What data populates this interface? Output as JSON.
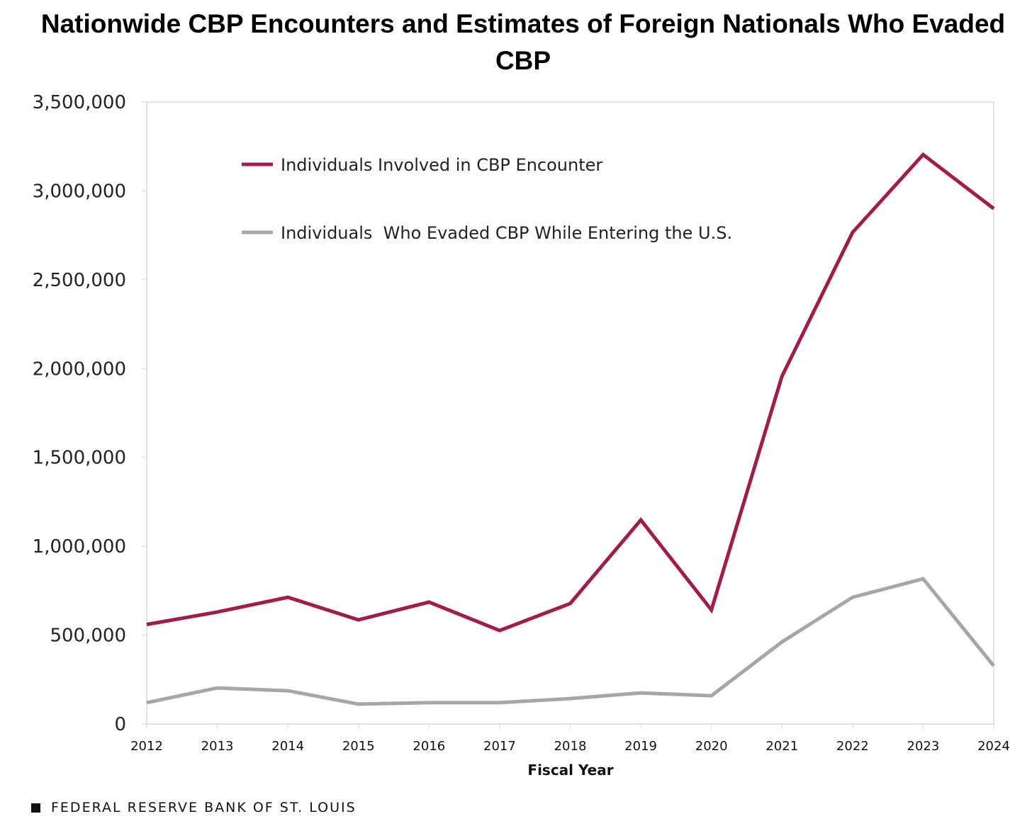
{
  "chart_data": {
    "type": "line",
    "title": "Nationwide CBP Encounters and Estimates of Foreign Nationals Who Evaded CBP",
    "xlabel": "Fiscal Year",
    "ylabel": "",
    "x": [
      2012,
      2013,
      2014,
      2015,
      2016,
      2017,
      2018,
      2019,
      2020,
      2021,
      2022,
      2023,
      2024
    ],
    "ylim": [
      0,
      3500000
    ],
    "yticks": [
      0,
      500000,
      1000000,
      1500000,
      2000000,
      2500000,
      3000000,
      3500000
    ],
    "ytick_labels": [
      "0",
      "500,000",
      "1,000,000",
      "1,500,000",
      "2,000,000",
      "2,500,000",
      "3,000,000",
      "3,500,000"
    ],
    "grid": false,
    "legend_position": "top-left",
    "series": [
      {
        "name": "Individuals Involved in CBP Encounter",
        "color": "#a11d47",
        "values": [
          560000,
          630000,
          713000,
          586000,
          686000,
          526000,
          678000,
          1148000,
          642000,
          1957000,
          2766000,
          3204000,
          2900000
        ]
      },
      {
        "name": "Individuals  Who Evaded CBP While Entering the U.S.",
        "color": "#a6a6a6",
        "values": [
          120000,
          203000,
          187000,
          112000,
          120000,
          120000,
          143000,
          175000,
          159000,
          462000,
          713000,
          817000,
          327000
        ]
      }
    ]
  },
  "footer": "FEDERAL RESERVE BANK OF ST. LOUIS"
}
